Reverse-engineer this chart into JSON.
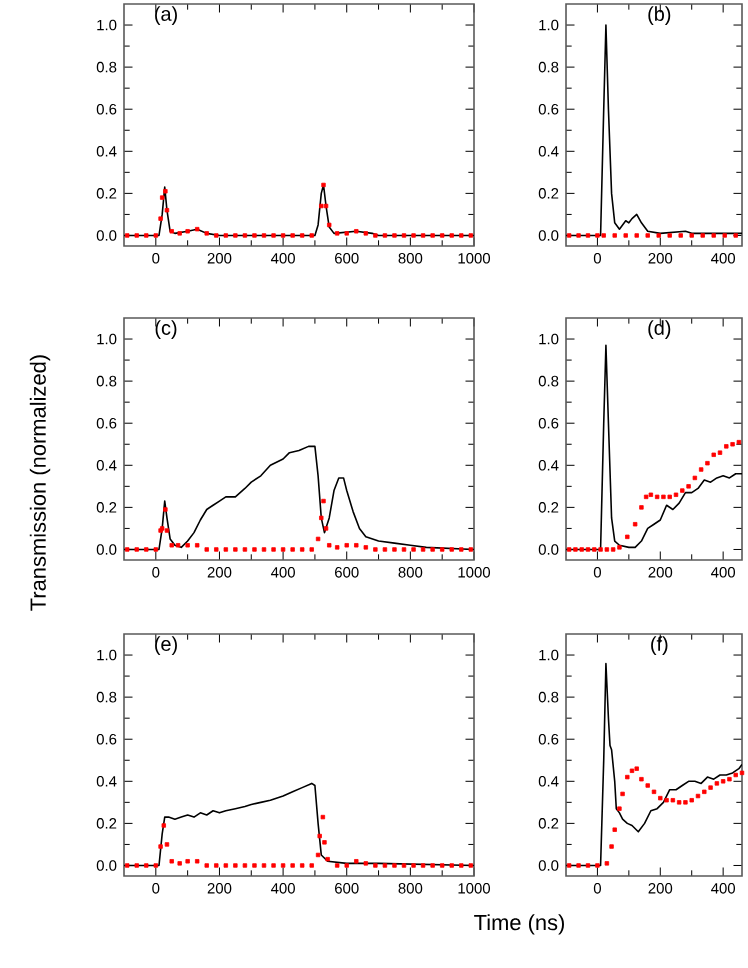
{
  "chart_data": [
    {
      "type": "line",
      "title": "(a)",
      "xlim": [
        -100,
        1000
      ],
      "xticks": [
        0,
        200,
        400,
        600,
        800,
        1000
      ],
      "ylim": [
        -0.05,
        1.1
      ],
      "yticks": [
        {
          "value": 0,
          "label": "0.0"
        },
        {
          "value": 0.2,
          "label": "0.2"
        },
        {
          "value": 0.4,
          "label": "0.4"
        },
        {
          "value": 0.6,
          "label": "0.6"
        },
        {
          "value": 0.8,
          "label": "0.8"
        },
        {
          "value": 1,
          "label": "1.0"
        }
      ],
      "series": [
        {
          "type": "line",
          "color": "#000000",
          "x": [
            -100,
            10,
            20,
            28,
            35,
            45,
            60,
            100,
            130,
            160,
            200,
            500,
            510,
            520,
            527,
            535,
            545,
            560,
            630,
            680,
            700,
            1000
          ],
          "values": [
            0,
            0,
            0.1,
            0.23,
            0.12,
            0.02,
            0.01,
            0.02,
            0.03,
            0.01,
            0,
            0,
            0.05,
            0.2,
            0.24,
            0.14,
            0.04,
            0.01,
            0.02,
            0.01,
            0,
            0
          ]
        },
        {
          "type": "scatter",
          "color": "#ff0000",
          "x": [
            -90,
            -60,
            -30,
            0,
            15,
            20,
            25,
            30,
            35,
            50,
            75,
            100,
            130,
            160,
            190,
            220,
            250,
            280,
            310,
            340,
            370,
            400,
            430,
            460,
            490,
            515,
            520,
            527,
            535,
            545,
            570,
            600,
            630,
            660,
            690,
            720,
            750,
            780,
            810,
            840,
            870,
            900,
            930,
            960,
            990
          ],
          "values": [
            0,
            0,
            0,
            0,
            0.08,
            0.18,
            null,
            0.21,
            0.12,
            0.02,
            0.01,
            0.02,
            0.03,
            0.01,
            0,
            0,
            0,
            0,
            0,
            0,
            0,
            0,
            0,
            0,
            0,
            null,
            0.14,
            0.24,
            0.14,
            0.05,
            0.01,
            0.01,
            0.02,
            0.01,
            0,
            0,
            0,
            0,
            0,
            0,
            0,
            0,
            0,
            0,
            0
          ]
        }
      ]
    },
    {
      "type": "line",
      "title": "(b)",
      "xlim": [
        -100,
        460
      ],
      "xticks": [
        0,
        200,
        400
      ],
      "ylim": [
        -0.05,
        1.1
      ],
      "yticks": [
        {
          "value": 0,
          "label": "0.0"
        },
        {
          "value": 0.2,
          "label": "0.2"
        },
        {
          "value": 0.4,
          "label": "0.4"
        },
        {
          "value": 0.6,
          "label": "0.6"
        },
        {
          "value": 0.8,
          "label": "0.8"
        },
        {
          "value": 1,
          "label": "1.0"
        }
      ],
      "series": [
        {
          "type": "line",
          "color": "#000000",
          "x": [
            -100,
            10,
            20,
            27,
            35,
            45,
            55,
            70,
            80,
            90,
            100,
            110,
            125,
            140,
            160,
            200,
            280,
            300,
            460
          ],
          "values": [
            0,
            0,
            0.6,
            1.0,
            0.6,
            0.2,
            0.06,
            0.03,
            0.05,
            0.07,
            0.06,
            0.08,
            0.1,
            0.06,
            0.02,
            0.01,
            0.02,
            0.01,
            0.01
          ]
        },
        {
          "type": "scatter",
          "color": "#ff0000",
          "x": [
            -90,
            -60,
            -30,
            0,
            20,
            55,
            90,
            125,
            160,
            195,
            230,
            265,
            300,
            335,
            370,
            405,
            440
          ],
          "values": [
            0,
            0,
            0,
            0,
            0,
            0,
            0,
            0,
            0,
            0,
            0,
            0,
            0,
            0,
            0,
            0,
            0
          ]
        }
      ]
    },
    {
      "type": "line",
      "title": "(c)",
      "ylabel": "Transmission (normalized)",
      "xlim": [
        -100,
        1000
      ],
      "xticks": [
        0,
        200,
        400,
        600,
        800,
        1000
      ],
      "ylim": [
        -0.05,
        1.1
      ],
      "yticks": [
        {
          "value": 0,
          "label": "0.0"
        },
        {
          "value": 0.2,
          "label": "0.2"
        },
        {
          "value": 0.4,
          "label": "0.4"
        },
        {
          "value": 0.6,
          "label": "0.6"
        },
        {
          "value": 0.8,
          "label": "0.8"
        },
        {
          "value": 1,
          "label": "1.0"
        }
      ],
      "series": [
        {
          "type": "line",
          "color": "#000000",
          "x": [
            -100,
            10,
            20,
            28,
            35,
            45,
            60,
            80,
            100,
            120,
            140,
            160,
            180,
            200,
            220,
            250,
            280,
            300,
            330,
            360,
            400,
            420,
            450,
            480,
            500,
            510,
            520,
            530,
            545,
            560,
            575,
            590,
            600,
            620,
            640,
            660,
            700,
            750,
            800,
            850,
            1000
          ],
          "values": [
            0,
            0,
            0.1,
            0.23,
            0.15,
            0.05,
            0.02,
            0.01,
            0.04,
            0.08,
            0.14,
            0.19,
            0.21,
            0.23,
            0.25,
            0.25,
            0.29,
            0.32,
            0.35,
            0.4,
            0.43,
            0.46,
            0.47,
            0.49,
            0.49,
            0.35,
            0.15,
            0.08,
            0.15,
            0.28,
            0.34,
            0.34,
            0.28,
            0.18,
            0.1,
            0.06,
            0.04,
            0.03,
            0.02,
            0.01,
            0
          ]
        },
        {
          "type": "scatter",
          "color": "#ff0000",
          "x": [
            -90,
            -60,
            -30,
            0,
            15,
            20,
            25,
            30,
            35,
            50,
            70,
            100,
            130,
            160,
            190,
            220,
            250,
            280,
            310,
            340,
            370,
            400,
            430,
            460,
            490,
            510,
            520,
            527,
            535,
            545,
            570,
            600,
            630,
            660,
            690,
            720,
            750,
            780,
            810,
            840,
            870,
            900,
            930,
            960,
            990
          ],
          "values": [
            0,
            0,
            0,
            0,
            0.09,
            0.1,
            null,
            0.19,
            0.09,
            0.02,
            0.02,
            0.02,
            0.02,
            0,
            0,
            0,
            0,
            0,
            0,
            0,
            0,
            0,
            0,
            0,
            0,
            0.05,
            0.15,
            0.23,
            0.1,
            0.02,
            0.01,
            0.02,
            0.02,
            0.01,
            0,
            0,
            0,
            0,
            0,
            0,
            0,
            0,
            0,
            0,
            0
          ]
        }
      ]
    },
    {
      "type": "line",
      "title": "(d)",
      "xlim": [
        -100,
        460
      ],
      "xticks": [
        0,
        200,
        400
      ],
      "ylim": [
        -0.05,
        1.1
      ],
      "yticks": [
        {
          "value": 0,
          "label": "0.0"
        },
        {
          "value": 0.2,
          "label": "0.2"
        },
        {
          "value": 0.4,
          "label": "0.4"
        },
        {
          "value": 0.6,
          "label": "0.6"
        },
        {
          "value": 0.8,
          "label": "0.8"
        },
        {
          "value": 1,
          "label": "1.0"
        }
      ],
      "series": [
        {
          "type": "line",
          "color": "#000000",
          "x": [
            -100,
            10,
            20,
            27,
            35,
            45,
            55,
            70,
            100,
            120,
            140,
            160,
            180,
            200,
            220,
            240,
            260,
            280,
            300,
            320,
            340,
            360,
            380,
            400,
            420,
            440,
            460
          ],
          "values": [
            0,
            0,
            0.6,
            0.97,
            0.6,
            0.15,
            0.04,
            0.02,
            0.01,
            0.01,
            0.04,
            0.1,
            0.12,
            0.14,
            0.21,
            0.19,
            0.22,
            0.27,
            0.27,
            0.29,
            0.33,
            0.32,
            0.34,
            0.35,
            0.34,
            0.36,
            0.36
          ]
        },
        {
          "type": "scatter",
          "color": "#ff0000",
          "x": [
            -90,
            -70,
            -50,
            -30,
            -10,
            10,
            30,
            50,
            70,
            95,
            120,
            140,
            155,
            170,
            190,
            210,
            230,
            250,
            270,
            290,
            310,
            330,
            350,
            370,
            390,
            410,
            430,
            450
          ],
          "values": [
            0,
            0,
            0,
            0,
            0,
            0,
            0,
            0,
            0.01,
            0.06,
            0.12,
            0.2,
            0.25,
            0.26,
            0.25,
            0.25,
            0.25,
            0.26,
            0.28,
            0.3,
            0.34,
            0.38,
            0.41,
            0.45,
            0.46,
            0.49,
            0.5,
            0.51
          ]
        }
      ]
    },
    {
      "type": "line",
      "title": "(e)",
      "xlabel": "Time (ns)",
      "xlim": [
        -100,
        1000
      ],
      "xticks": [
        0,
        200,
        400,
        600,
        800,
        1000
      ],
      "ylim": [
        -0.05,
        1.1
      ],
      "yticks": [
        {
          "value": 0,
          "label": "0.0"
        },
        {
          "value": 0.2,
          "label": "0.2"
        },
        {
          "value": 0.4,
          "label": "0.4"
        },
        {
          "value": 0.6,
          "label": "0.6"
        },
        {
          "value": 0.8,
          "label": "0.8"
        },
        {
          "value": 1,
          "label": "1.0"
        }
      ],
      "series": [
        {
          "type": "line",
          "color": "#000000",
          "x": [
            -100,
            10,
            20,
            28,
            40,
            60,
            80,
            100,
            120,
            140,
            160,
            180,
            200,
            220,
            250,
            280,
            300,
            330,
            360,
            400,
            430,
            460,
            490,
            500,
            510,
            520,
            540,
            600,
            700,
            1000
          ],
          "values": [
            0,
            0,
            0.15,
            0.23,
            0.23,
            0.22,
            0.23,
            0.24,
            0.23,
            0.25,
            0.24,
            0.26,
            0.25,
            0.26,
            0.27,
            0.28,
            0.29,
            0.3,
            0.31,
            0.33,
            0.35,
            0.37,
            0.39,
            0.38,
            0.2,
            0.05,
            0.02,
            0.01,
            0.01,
            0
          ]
        },
        {
          "type": "scatter",
          "color": "#ff0000",
          "x": [
            -90,
            -60,
            -30,
            0,
            15,
            20,
            25,
            35,
            50,
            75,
            100,
            130,
            160,
            190,
            220,
            250,
            280,
            310,
            340,
            370,
            400,
            430,
            460,
            490,
            510,
            515,
            525,
            530,
            540,
            570,
            600,
            630,
            660,
            690,
            720,
            750,
            780,
            810,
            840,
            870,
            900,
            930,
            960,
            990
          ],
          "values": [
            0,
            0,
            0,
            0,
            0.09,
            null,
            0.19,
            0.1,
            0.02,
            0.01,
            0.02,
            0.02,
            0,
            0,
            0,
            0,
            0,
            0,
            0,
            0,
            0,
            0,
            0,
            0,
            0.05,
            0.14,
            0.23,
            0.11,
            0.03,
            0,
            0,
            0.02,
            0.01,
            0,
            0,
            0,
            0,
            0,
            0,
            0,
            0,
            0,
            0,
            0
          ]
        }
      ]
    },
    {
      "type": "line",
      "title": "(f)",
      "xlim": [
        -100,
        460
      ],
      "xticks": [
        0,
        200,
        400
      ],
      "ylim": [
        -0.05,
        1.1
      ],
      "yticks": [
        {
          "value": 0,
          "label": "0.0"
        },
        {
          "value": 0.2,
          "label": "0.2"
        },
        {
          "value": 0.4,
          "label": "0.4"
        },
        {
          "value": 0.6,
          "label": "0.6"
        },
        {
          "value": 0.8,
          "label": "0.8"
        },
        {
          "value": 1,
          "label": "1.0"
        }
      ],
      "series": [
        {
          "type": "line",
          "color": "#000000",
          "x": [
            -100,
            10,
            20,
            27,
            35,
            40,
            45,
            55,
            60,
            70,
            80,
            95,
            110,
            130,
            150,
            170,
            190,
            210,
            230,
            250,
            270,
            290,
            310,
            330,
            350,
            370,
            390,
            410,
            430,
            450,
            460
          ],
          "values": [
            0,
            0,
            0.5,
            0.96,
            0.7,
            0.57,
            0.55,
            0.4,
            0.27,
            0.25,
            0.22,
            0.2,
            0.19,
            0.16,
            0.2,
            0.26,
            0.27,
            0.3,
            0.36,
            0.36,
            0.38,
            0.4,
            0.4,
            0.39,
            0.42,
            0.41,
            0.43,
            0.43,
            0.44,
            0.46,
            0.48
          ]
        },
        {
          "type": "scatter",
          "color": "#ff0000",
          "x": [
            -90,
            -60,
            -30,
            0,
            30,
            45,
            55,
            70,
            80,
            95,
            110,
            125,
            140,
            160,
            180,
            200,
            220,
            240,
            260,
            280,
            300,
            320,
            340,
            360,
            380,
            400,
            420,
            440,
            460
          ],
          "values": [
            0,
            0,
            0,
            0,
            0.01,
            0.09,
            0.17,
            0.27,
            0.34,
            0.42,
            0.45,
            0.46,
            0.41,
            0.38,
            0.35,
            0.32,
            0.31,
            0.31,
            0.3,
            0.3,
            0.31,
            0.33,
            0.35,
            0.37,
            0.39,
            0.4,
            0.41,
            0.43,
            0.44
          ]
        }
      ]
    }
  ]
}
